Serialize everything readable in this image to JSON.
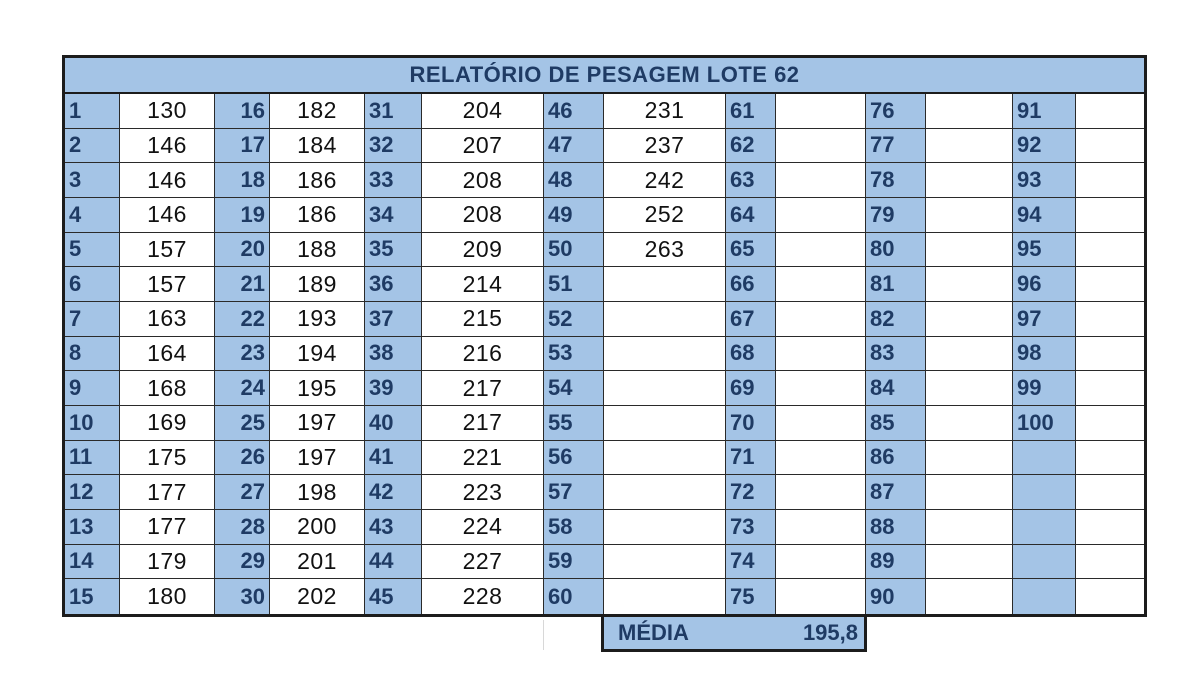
{
  "title": "RELATÓRIO DE PESAGEM LOTE 62",
  "rows": [
    [
      {
        "n": "1",
        "v": "130"
      },
      {
        "n": "16",
        "v": "182"
      },
      {
        "n": "31",
        "v": "204"
      },
      {
        "n": "46",
        "v": "231"
      },
      {
        "n": "61",
        "v": ""
      },
      {
        "n": "76",
        "v": ""
      },
      {
        "n": "91",
        "v": ""
      }
    ],
    [
      {
        "n": "2",
        "v": "146"
      },
      {
        "n": "17",
        "v": "184"
      },
      {
        "n": "32",
        "v": "207"
      },
      {
        "n": "47",
        "v": "237"
      },
      {
        "n": "62",
        "v": ""
      },
      {
        "n": "77",
        "v": ""
      },
      {
        "n": "92",
        "v": ""
      }
    ],
    [
      {
        "n": "3",
        "v": "146"
      },
      {
        "n": "18",
        "v": "186"
      },
      {
        "n": "33",
        "v": "208"
      },
      {
        "n": "48",
        "v": "242"
      },
      {
        "n": "63",
        "v": ""
      },
      {
        "n": "78",
        "v": ""
      },
      {
        "n": "93",
        "v": ""
      }
    ],
    [
      {
        "n": "4",
        "v": "146"
      },
      {
        "n": "19",
        "v": "186"
      },
      {
        "n": "34",
        "v": "208"
      },
      {
        "n": "49",
        "v": "252"
      },
      {
        "n": "64",
        "v": ""
      },
      {
        "n": "79",
        "v": ""
      },
      {
        "n": "94",
        "v": ""
      }
    ],
    [
      {
        "n": "5",
        "v": "157"
      },
      {
        "n": "20",
        "v": "188"
      },
      {
        "n": "35",
        "v": "209"
      },
      {
        "n": "50",
        "v": "263"
      },
      {
        "n": "65",
        "v": ""
      },
      {
        "n": "80",
        "v": ""
      },
      {
        "n": "95",
        "v": ""
      }
    ],
    [
      {
        "n": "6",
        "v": "157"
      },
      {
        "n": "21",
        "v": "189"
      },
      {
        "n": "36",
        "v": "214"
      },
      {
        "n": "51",
        "v": ""
      },
      {
        "n": "66",
        "v": ""
      },
      {
        "n": "81",
        "v": ""
      },
      {
        "n": "96",
        "v": ""
      }
    ],
    [
      {
        "n": "7",
        "v": "163"
      },
      {
        "n": "22",
        "v": "193"
      },
      {
        "n": "37",
        "v": "215"
      },
      {
        "n": "52",
        "v": ""
      },
      {
        "n": "67",
        "v": ""
      },
      {
        "n": "82",
        "v": ""
      },
      {
        "n": "97",
        "v": ""
      }
    ],
    [
      {
        "n": "8",
        "v": "164"
      },
      {
        "n": "23",
        "v": "194"
      },
      {
        "n": "38",
        "v": "216"
      },
      {
        "n": "53",
        "v": ""
      },
      {
        "n": "68",
        "v": ""
      },
      {
        "n": "83",
        "v": ""
      },
      {
        "n": "98",
        "v": ""
      }
    ],
    [
      {
        "n": "9",
        "v": "168"
      },
      {
        "n": "24",
        "v": "195"
      },
      {
        "n": "39",
        "v": "217"
      },
      {
        "n": "54",
        "v": ""
      },
      {
        "n": "69",
        "v": ""
      },
      {
        "n": "84",
        "v": ""
      },
      {
        "n": "99",
        "v": ""
      }
    ],
    [
      {
        "n": "10",
        "v": "169"
      },
      {
        "n": "25",
        "v": "197"
      },
      {
        "n": "40",
        "v": "217"
      },
      {
        "n": "55",
        "v": ""
      },
      {
        "n": "70",
        "v": ""
      },
      {
        "n": "85",
        "v": ""
      },
      {
        "n": "100",
        "v": ""
      }
    ],
    [
      {
        "n": "11",
        "v": "175"
      },
      {
        "n": "26",
        "v": "197"
      },
      {
        "n": "41",
        "v": "221"
      },
      {
        "n": "56",
        "v": ""
      },
      {
        "n": "71",
        "v": ""
      },
      {
        "n": "86",
        "v": ""
      },
      {
        "n": "",
        "v": ""
      }
    ],
    [
      {
        "n": "12",
        "v": "177"
      },
      {
        "n": "27",
        "v": "198"
      },
      {
        "n": "42",
        "v": "223"
      },
      {
        "n": "57",
        "v": ""
      },
      {
        "n": "72",
        "v": ""
      },
      {
        "n": "87",
        "v": ""
      },
      {
        "n": "",
        "v": ""
      }
    ],
    [
      {
        "n": "13",
        "v": "177"
      },
      {
        "n": "28",
        "v": "200"
      },
      {
        "n": "43",
        "v": "224"
      },
      {
        "n": "58",
        "v": ""
      },
      {
        "n": "73",
        "v": ""
      },
      {
        "n": "88",
        "v": ""
      },
      {
        "n": "",
        "v": ""
      }
    ],
    [
      {
        "n": "14",
        "v": "179"
      },
      {
        "n": "29",
        "v": "201"
      },
      {
        "n": "44",
        "v": "227"
      },
      {
        "n": "59",
        "v": ""
      },
      {
        "n": "74",
        "v": ""
      },
      {
        "n": "89",
        "v": ""
      },
      {
        "n": "",
        "v": ""
      }
    ],
    [
      {
        "n": "15",
        "v": "180"
      },
      {
        "n": "30",
        "v": "202"
      },
      {
        "n": "45",
        "v": "228"
      },
      {
        "n": "60",
        "v": ""
      },
      {
        "n": "75",
        "v": ""
      },
      {
        "n": "90",
        "v": ""
      },
      {
        "n": "",
        "v": ""
      }
    ]
  ],
  "summary": {
    "label": "MÉDIA",
    "value": "195,8"
  },
  "colors": {
    "header_fill": "#a4c4e6",
    "header_text": "#1f3b64",
    "border": "#1c1c1c"
  }
}
